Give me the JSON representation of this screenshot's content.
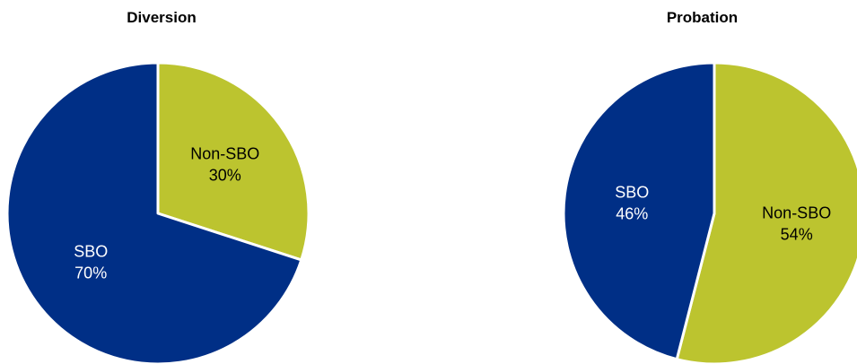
{
  "chart_data": [
    {
      "type": "pie",
      "title": "Diversion",
      "slices": [
        {
          "label": "Non-SBO",
          "value": 30,
          "value_label": "30%",
          "color": "#bcc42f",
          "label_color": "#000000"
        },
        {
          "label": "SBO",
          "value": 70,
          "value_label": "70%",
          "color": "#002f86",
          "label_color": "#ffffff"
        }
      ]
    },
    {
      "type": "pie",
      "title": "Probation",
      "slices": [
        {
          "label": "Non-SBO",
          "value": 54,
          "value_label": "54%",
          "color": "#bcc42f",
          "label_color": "#000000"
        },
        {
          "label": "SBO",
          "value": 46,
          "value_label": "46%",
          "color": "#002f86",
          "label_color": "#ffffff"
        }
      ]
    }
  ]
}
